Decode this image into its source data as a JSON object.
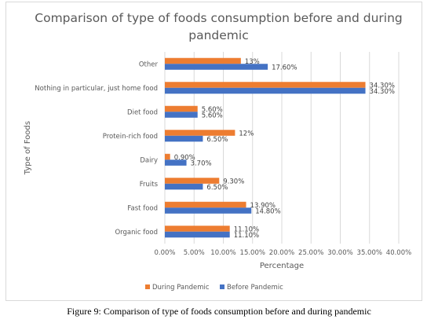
{
  "chart_data": {
    "type": "bar",
    "orientation": "horizontal",
    "title": "Comparison of type of foods consumption before and during pandemic",
    "xlabel": "Percentage",
    "ylabel": "Type of Foods",
    "xlim": [
      0,
      40
    ],
    "x_ticks": [
      "0.00%",
      "5.00%",
      "10.00%",
      "15.00%",
      "20.00%",
      "25.00%",
      "30.00%",
      "35.00%",
      "40.00%"
    ],
    "grid": true,
    "legend_position": "bottom",
    "categories": [
      "Other",
      "Nothing in particular, just home food",
      "Diet food",
      "Protein-rich food",
      "Dairy",
      "Fruits",
      "Fast food",
      "Organic food"
    ],
    "series": [
      {
        "name": "During Pandemic",
        "color": "#ED7D31",
        "values": [
          13,
          34.3,
          5.6,
          12,
          0.9,
          9.3,
          13.9,
          11.1
        ],
        "labels": [
          "13%",
          "34.30%",
          "5.60%",
          "12%",
          "0.90%",
          "9.30%",
          "13.90%",
          "11.10%"
        ]
      },
      {
        "name": "Before Pandemic",
        "color": "#4472C4",
        "values": [
          17.6,
          34.3,
          5.6,
          6.5,
          3.7,
          6.5,
          14.8,
          11.1
        ],
        "labels": [
          "17.60%",
          "34.30%",
          "5.60%",
          "6.50%",
          "3.70%",
          "6.50%",
          "14.80%",
          "11.10%"
        ]
      }
    ]
  },
  "caption": "Figure 9: Comparison of type of foods consumption before and during pandemic"
}
